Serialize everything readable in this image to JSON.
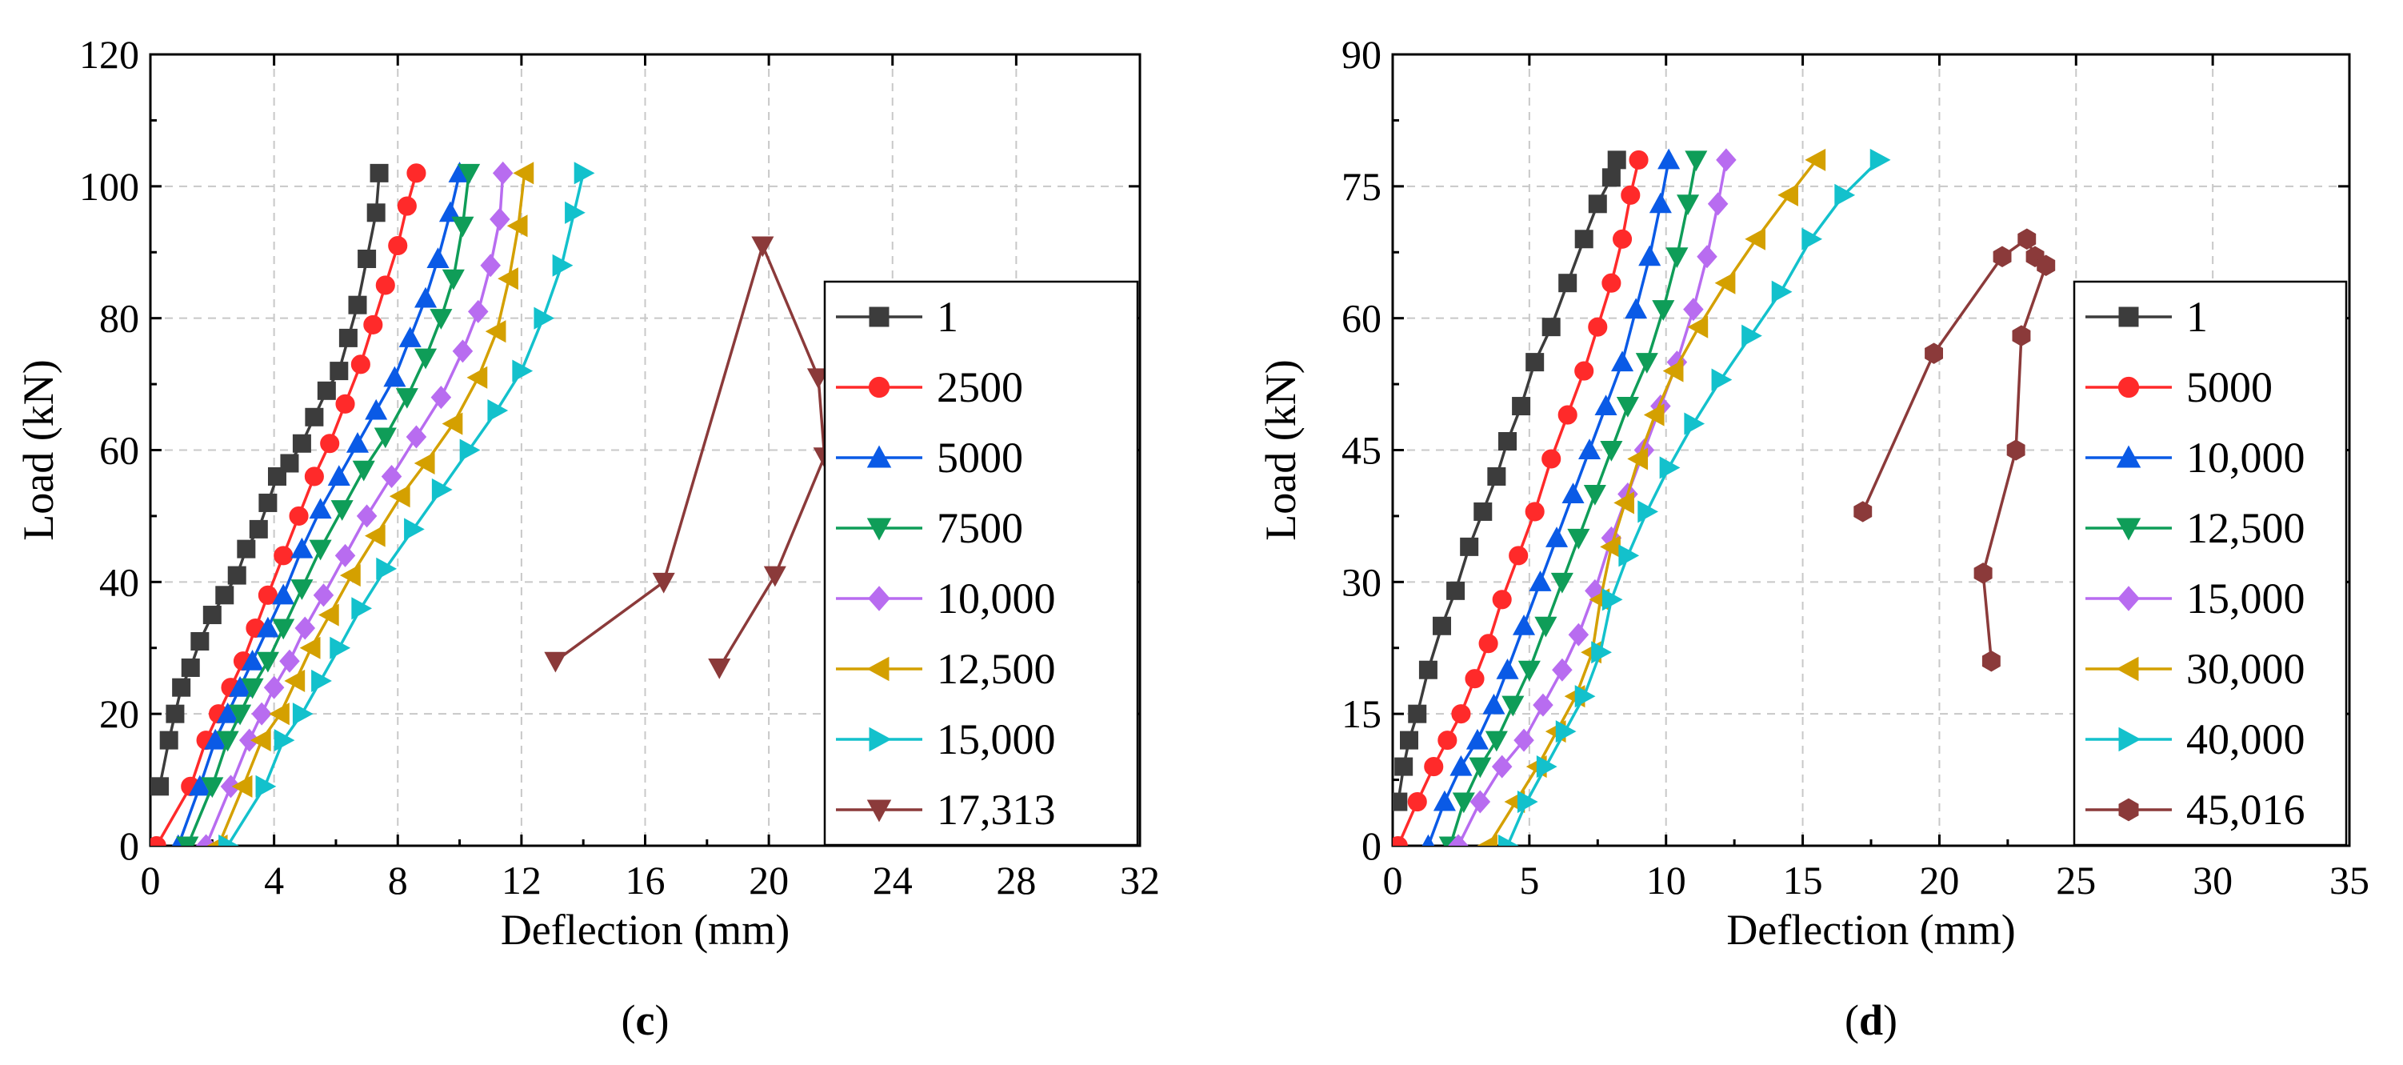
{
  "colors": {
    "s1": "#3c3c3c",
    "s2": "#ff2a2a",
    "s3": "#0a5ae6",
    "s4": "#0f9d58",
    "s5": "#b86cf0",
    "s6": "#d4a000",
    "s7": "#13c1cc",
    "s8": "#8b3a3a",
    "s8d": "#7a3434"
  },
  "chart_data": [
    {
      "type": "line",
      "panel_label": "(c)",
      "panel_letter": "c",
      "xlabel": "Deflection (mm)",
      "ylabel": "Load (kN)",
      "xlim": [
        0,
        32
      ],
      "ylim": [
        0,
        120
      ],
      "xticks": [
        0,
        4,
        8,
        12,
        16,
        20,
        24,
        28,
        32
      ],
      "yticks": [
        0,
        20,
        40,
        60,
        80,
        100,
        120
      ],
      "grid": true,
      "legend_position": "right",
      "series": [
        {
          "name": "1",
          "color_key": "s1",
          "marker": "square",
          "x": [
            0.3,
            0.6,
            0.8,
            1.0,
            1.3,
            1.6,
            2.0,
            2.4,
            2.8,
            3.1,
            3.5,
            3.8,
            4.1,
            4.5,
            4.9,
            5.3,
            5.7,
            6.1,
            6.4,
            6.7,
            7.0,
            7.3,
            7.4
          ],
          "y": [
            9,
            16,
            20,
            24,
            27,
            31,
            35,
            38,
            41,
            45,
            48,
            52,
            56,
            58,
            61,
            65,
            69,
            72,
            77,
            82,
            89,
            96,
            102
          ]
        },
        {
          "name": "2500",
          "color_key": "s2",
          "marker": "circle",
          "x": [
            0.2,
            1.3,
            1.8,
            2.2,
            2.6,
            3.0,
            3.4,
            3.8,
            4.3,
            4.8,
            5.3,
            5.8,
            6.3,
            6.8,
            7.2,
            7.6,
            8.0,
            8.3,
            8.6
          ],
          "y": [
            0,
            9,
            16,
            20,
            24,
            28,
            33,
            38,
            44,
            50,
            56,
            61,
            67,
            73,
            79,
            85,
            91,
            97,
            102
          ]
        },
        {
          "name": "5000",
          "color_key": "s3",
          "marker": "triangle-up",
          "x": [
            0.9,
            1.6,
            2.1,
            2.5,
            2.9,
            3.3,
            3.8,
            4.3,
            4.9,
            5.5,
            6.1,
            6.7,
            7.3,
            7.9,
            8.4,
            8.9,
            9.3,
            9.7,
            10.0
          ],
          "y": [
            0,
            9,
            16,
            20,
            24,
            28,
            33,
            38,
            45,
            51,
            56,
            61,
            66,
            71,
            77,
            83,
            89,
            96,
            102
          ]
        },
        {
          "name": "7500",
          "color_key": "s4",
          "marker": "triangle-down",
          "x": [
            1.2,
            2.0,
            2.5,
            2.9,
            3.3,
            3.8,
            4.3,
            4.9,
            5.5,
            6.2,
            6.9,
            7.6,
            8.3,
            8.9,
            9.4,
            9.8,
            10.1,
            10.3
          ],
          "y": [
            0,
            9,
            16,
            20,
            24,
            28,
            33,
            39,
            45,
            51,
            57,
            62,
            68,
            74,
            80,
            86,
            94,
            102
          ]
        },
        {
          "name": "10,000",
          "color_key": "s5",
          "marker": "diamond",
          "x": [
            1.8,
            2.6,
            3.2,
            3.6,
            4.0,
            4.5,
            5.0,
            5.6,
            6.3,
            7.0,
            7.8,
            8.6,
            9.4,
            10.1,
            10.6,
            11.0,
            11.3,
            11.4
          ],
          "y": [
            0,
            9,
            16,
            20,
            24,
            28,
            33,
            38,
            44,
            50,
            56,
            62,
            68,
            75,
            81,
            88,
            95,
            102
          ]
        },
        {
          "name": "12,500",
          "color_key": "s6",
          "marker": "triangle-left",
          "x": [
            2.2,
            3.0,
            3.6,
            4.2,
            4.7,
            5.2,
            5.8,
            6.5,
            7.3,
            8.1,
            8.9,
            9.8,
            10.6,
            11.2,
            11.6,
            11.9,
            12.1
          ],
          "y": [
            0,
            9,
            16,
            20,
            25,
            30,
            35,
            41,
            47,
            53,
            58,
            64,
            71,
            78,
            86,
            94,
            102
          ]
        },
        {
          "name": "15,000",
          "color_key": "s7",
          "marker": "triangle-right",
          "x": [
            2.5,
            3.7,
            4.3,
            4.9,
            5.5,
            6.1,
            6.8,
            7.6,
            8.5,
            9.4,
            10.3,
            11.2,
            12.0,
            12.7,
            13.3,
            13.7,
            14.0
          ],
          "y": [
            0,
            9,
            16,
            20,
            25,
            30,
            36,
            42,
            48,
            54,
            60,
            66,
            72,
            80,
            88,
            96,
            102
          ]
        },
        {
          "name": "17,313",
          "color_key": "s8",
          "marker": "triangle-down",
          "x": [
            13.1,
            16.6,
            19.8,
            21.6,
            21.8,
            20.2,
            18.4
          ],
          "y": [
            28,
            40,
            91,
            71,
            59,
            41,
            27
          ]
        }
      ]
    },
    {
      "type": "line",
      "panel_label": "(d)",
      "panel_letter": "d",
      "xlabel": "Deflection (mm)",
      "ylabel": "Load (kN)",
      "xlim": [
        0,
        35
      ],
      "ylim": [
        0,
        90
      ],
      "xticks": [
        0,
        5,
        10,
        15,
        20,
        25,
        30,
        35
      ],
      "yticks": [
        0,
        15,
        30,
        45,
        60,
        75,
        90
      ],
      "grid": true,
      "legend_position": "right",
      "series": [
        {
          "name": "1",
          "color_key": "s1",
          "marker": "square",
          "x": [
            0.2,
            0.4,
            0.6,
            0.9,
            1.3,
            1.8,
            2.3,
            2.8,
            3.3,
            3.8,
            4.2,
            4.7,
            5.2,
            5.8,
            6.4,
            7.0,
            7.5,
            8.0,
            8.2
          ],
          "y": [
            5,
            9,
            12,
            15,
            20,
            25,
            29,
            34,
            38,
            42,
            46,
            50,
            55,
            59,
            64,
            69,
            73,
            76,
            78
          ]
        },
        {
          "name": "5000",
          "color_key": "s2",
          "marker": "circle",
          "x": [
            0.2,
            0.9,
            1.5,
            2.0,
            2.5,
            3.0,
            3.5,
            4.0,
            4.6,
            5.2,
            5.8,
            6.4,
            7.0,
            7.5,
            8.0,
            8.4,
            8.7,
            9.0
          ],
          "y": [
            0,
            5,
            9,
            12,
            15,
            19,
            23,
            28,
            33,
            38,
            44,
            49,
            54,
            59,
            64,
            69,
            74,
            78
          ]
        },
        {
          "name": "10,000",
          "color_key": "s3",
          "marker": "triangle-up",
          "x": [
            1.3,
            1.9,
            2.5,
            3.1,
            3.7,
            4.2,
            4.8,
            5.4,
            6.0,
            6.6,
            7.2,
            7.8,
            8.4,
            8.9,
            9.4,
            9.8,
            10.1
          ],
          "y": [
            0,
            5,
            9,
            12,
            16,
            20,
            25,
            30,
            35,
            40,
            45,
            50,
            55,
            61,
            67,
            73,
            78
          ]
        },
        {
          "name": "12,500",
          "color_key": "s4",
          "marker": "triangle-down",
          "x": [
            2.1,
            2.6,
            3.2,
            3.8,
            4.4,
            5.0,
            5.6,
            6.2,
            6.8,
            7.4,
            8.0,
            8.6,
            9.3,
            9.9,
            10.4,
            10.8,
            11.1
          ],
          "y": [
            0,
            5,
            9,
            12,
            16,
            20,
            25,
            30,
            35,
            40,
            45,
            50,
            55,
            61,
            67,
            73,
            78
          ]
        },
        {
          "name": "15,000",
          "color_key": "s5",
          "marker": "diamond",
          "x": [
            2.4,
            3.2,
            4.0,
            4.8,
            5.5,
            6.2,
            6.8,
            7.4,
            8.0,
            8.6,
            9.2,
            9.8,
            10.4,
            11.0,
            11.5,
            11.9,
            12.2
          ],
          "y": [
            0,
            5,
            9,
            12,
            16,
            20,
            24,
            29,
            35,
            40,
            45,
            50,
            55,
            61,
            67,
            73,
            78
          ]
        },
        {
          "name": "30,000",
          "color_key": "s6",
          "marker": "triangle-left",
          "x": [
            3.5,
            4.5,
            5.3,
            6.0,
            6.7,
            7.3,
            7.6,
            8.0,
            8.5,
            9.0,
            9.6,
            10.3,
            11.2,
            12.2,
            13.3,
            14.5,
            15.5
          ],
          "y": [
            0,
            5,
            9,
            13,
            17,
            22,
            28,
            34,
            39,
            44,
            49,
            54,
            59,
            64,
            69,
            74,
            78
          ]
        },
        {
          "name": "40,000",
          "color_key": "s7",
          "marker": "triangle-right",
          "x": [
            4.2,
            4.9,
            5.6,
            6.3,
            7.0,
            7.6,
            8.0,
            8.6,
            9.3,
            10.1,
            11.0,
            12.0,
            13.1,
            14.2,
            15.3,
            16.5,
            17.8
          ],
          "y": [
            0,
            5,
            9,
            13,
            17,
            22,
            28,
            33,
            38,
            43,
            48,
            53,
            58,
            63,
            69,
            74,
            78
          ]
        },
        {
          "name": "45,016",
          "color_key": "s8",
          "marker": "hexagon",
          "x": [
            17.2,
            19.8,
            22.3,
            23.2,
            23.5,
            23.9,
            23.0,
            22.8,
            21.6,
            21.9
          ],
          "y": [
            38,
            56,
            67,
            69,
            67,
            66,
            58,
            45,
            31,
            21
          ]
        }
      ]
    }
  ]
}
